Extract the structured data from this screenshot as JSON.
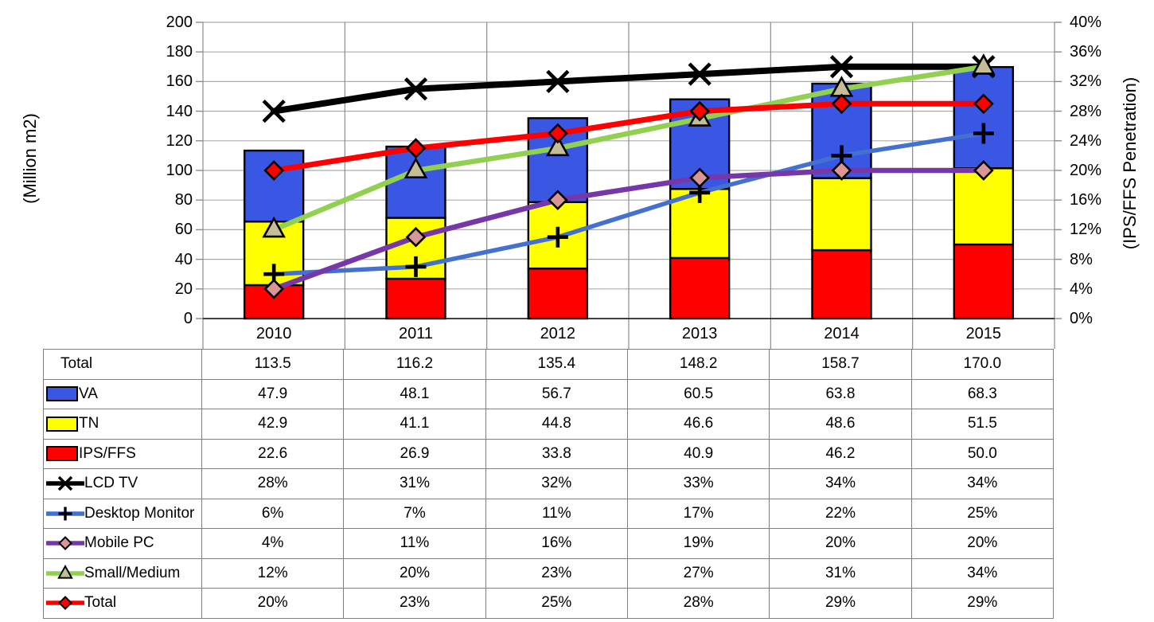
{
  "chart_data": {
    "type": "combo-stacked-bar-line",
    "categories": [
      "2010",
      "2011",
      "2012",
      "2013",
      "2014",
      "2015"
    ],
    "left_axis": {
      "title": "(Million m2)",
      "min": 0,
      "max": 200,
      "step": 20,
      "ticks": [
        "0",
        "20",
        "40",
        "60",
        "80",
        "100",
        "120",
        "140",
        "160",
        "180",
        "200"
      ]
    },
    "right_axis": {
      "title": "(IPS/FFS Penetration)",
      "min": 0,
      "max": 40,
      "step": 4,
      "ticks": [
        "0%",
        "4%",
        "8%",
        "12%",
        "16%",
        "20%",
        "24%",
        "28%",
        "32%",
        "36%",
        "40%"
      ]
    },
    "bar_series": [
      {
        "name": "IPS/FFS",
        "color": "#FF0000",
        "values": [
          22.6,
          26.9,
          33.8,
          40.9,
          46.2,
          50.0
        ]
      },
      {
        "name": "TN",
        "color": "#FFFF00",
        "values": [
          42.9,
          41.1,
          44.8,
          46.6,
          48.6,
          51.5
        ]
      },
      {
        "name": "VA",
        "color": "#3A57E3",
        "values": [
          47.9,
          48.1,
          56.7,
          60.5,
          63.8,
          68.3
        ]
      }
    ],
    "line_series": [
      {
        "name": "LCD TV",
        "color": "#000000",
        "stroke_width": 8,
        "marker": "x",
        "marker_fill": "#000000",
        "values": [
          28,
          31,
          32,
          33,
          34,
          34
        ]
      },
      {
        "name": "Desktop Monitor",
        "color": "#4470D0",
        "stroke_width": 5.5,
        "marker": "plus",
        "marker_fill": "#000000",
        "values": [
          6,
          7,
          11,
          17,
          22,
          25
        ]
      },
      {
        "name": "Mobile PC",
        "color": "#7638A8",
        "stroke_width": 6.5,
        "marker": "diamond",
        "marker_fill": "#D99694",
        "values": [
          4,
          11,
          16,
          19,
          20,
          20
        ]
      },
      {
        "name": "Small/Medium",
        "color": "#92D050",
        "stroke_width": 6.5,
        "marker": "triangle",
        "marker_fill": "#C4BD97",
        "values": [
          12,
          20,
          23,
          27,
          31,
          34
        ]
      },
      {
        "name": "Total",
        "color": "#FF0000",
        "stroke_width": 7,
        "marker": "diamond",
        "marker_fill": "#FF0000",
        "values": [
          20,
          23,
          25,
          28,
          29,
          29
        ]
      }
    ],
    "grid": true,
    "legend_position": "table-below",
    "grid_color": "#ABABAB",
    "axis_line_color": "#8C8C8C",
    "zero_line_color": "#262626"
  },
  "table": {
    "columns": [
      "2010",
      "2011",
      "2012",
      "2013",
      "2014",
      "2015"
    ],
    "rows": [
      {
        "label": "Total",
        "swatch": "none",
        "values": [
          "113.5",
          "116.2",
          "135.4",
          "148.2",
          "158.7",
          "170.0"
        ]
      },
      {
        "label": "VA",
        "swatch": "bar",
        "color": "#3A57E3",
        "values": [
          "47.9",
          "48.1",
          "56.7",
          "60.5",
          "63.8",
          "68.3"
        ]
      },
      {
        "label": "TN",
        "swatch": "bar",
        "color": "#FFFF00",
        "values": [
          "42.9",
          "41.1",
          "44.8",
          "46.6",
          "48.6",
          "51.5"
        ]
      },
      {
        "label": "IPS/FFS",
        "swatch": "bar",
        "color": "#FF0000",
        "values": [
          "22.6",
          "26.9",
          "33.8",
          "40.9",
          "46.2",
          "50.0"
        ]
      },
      {
        "label": "LCD TV",
        "swatch": "line",
        "color": "#000000",
        "marker": "x",
        "marker_fill": "#000000",
        "values": [
          "28%",
          "31%",
          "32%",
          "33%",
          "34%",
          "34%"
        ]
      },
      {
        "label": "Desktop Monitor",
        "swatch": "line",
        "color": "#4470D0",
        "marker": "plus",
        "marker_fill": "#000000",
        "values": [
          "6%",
          "7%",
          "11%",
          "17%",
          "22%",
          "25%"
        ]
      },
      {
        "label": "Mobile PC",
        "swatch": "line",
        "color": "#7638A8",
        "marker": "diamond",
        "marker_fill": "#D99694",
        "values": [
          "4%",
          "11%",
          "16%",
          "19%",
          "20%",
          "20%"
        ]
      },
      {
        "label": "Small/Medium",
        "swatch": "line",
        "color": "#92D050",
        "marker": "triangle",
        "marker_fill": "#C4BD97",
        "values": [
          "12%",
          "20%",
          "23%",
          "27%",
          "31%",
          "34%"
        ]
      },
      {
        "label": "Total",
        "swatch": "line",
        "color": "#FF0000",
        "marker": "diamond",
        "marker_fill": "#FF0000",
        "values": [
          "20%",
          "23%",
          "25%",
          "28%",
          "29%",
          "29%"
        ]
      }
    ]
  }
}
